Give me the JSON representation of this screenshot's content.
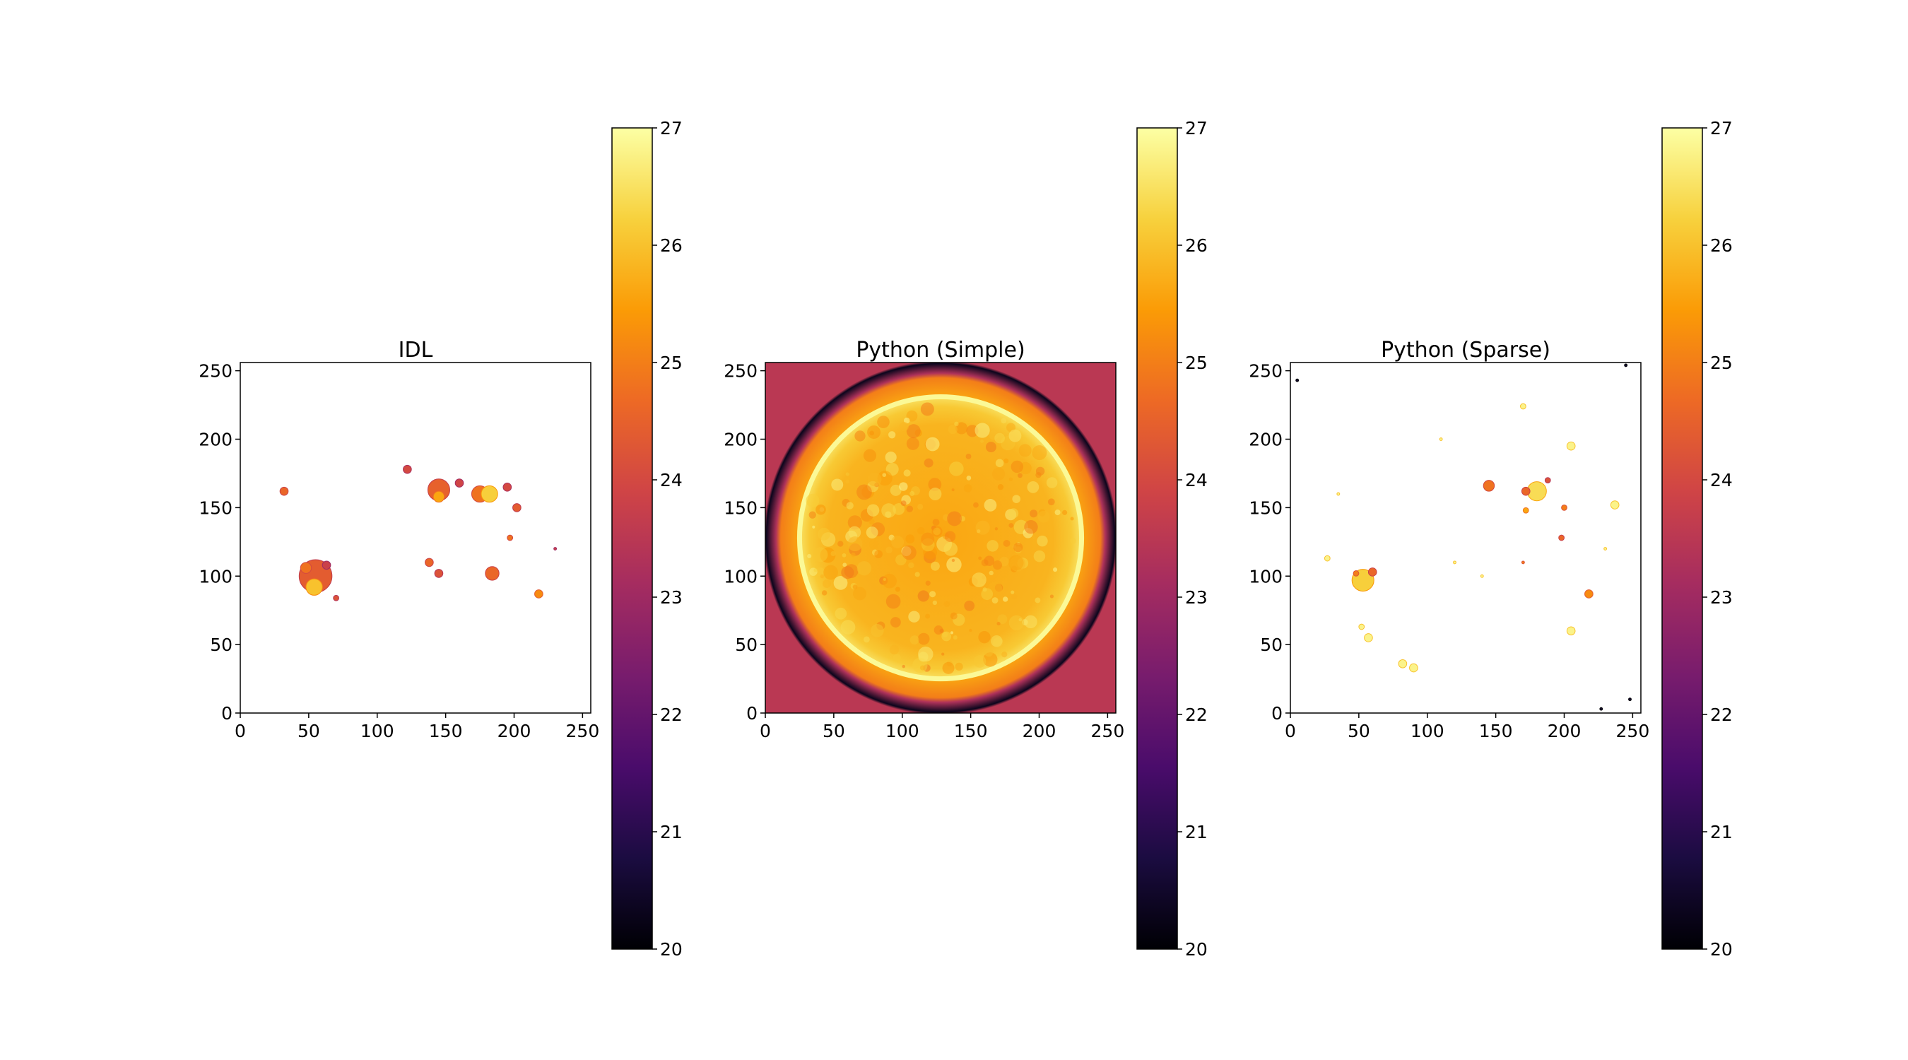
{
  "colormap": {
    "name": "inferno",
    "stops": [
      "#000004",
      "#1b0c41",
      "#4a0c6b",
      "#781c6d",
      "#a52c60",
      "#cf4446",
      "#ed6925",
      "#fb9b06",
      "#f7d13d",
      "#fcffa4"
    ]
  },
  "chart_data": [
    {
      "type": "heatmap",
      "title": "IDL",
      "xlim": [
        0,
        256
      ],
      "ylim": [
        0,
        256
      ],
      "xticks": [
        "0",
        "50",
        "100",
        "150",
        "200",
        "250"
      ],
      "yticks": [
        "0",
        "50",
        "100",
        "150",
        "200",
        "250"
      ],
      "xtick_values": [
        0,
        50,
        100,
        150,
        200,
        250
      ],
      "ytick_values": [
        0,
        50,
        100,
        150,
        200,
        250
      ],
      "style": "sparse",
      "blobs": [
        {
          "x": 32,
          "y": 162,
          "r": 3,
          "v": 24.6
        },
        {
          "x": 55,
          "y": 100,
          "r": 12,
          "v": 24.4
        },
        {
          "x": 54,
          "y": 92,
          "r": 6,
          "v": 26.0
        },
        {
          "x": 48,
          "y": 106,
          "r": 4,
          "v": 24.8
        },
        {
          "x": 63,
          "y": 108,
          "r": 3,
          "v": 23.8
        },
        {
          "x": 70,
          "y": 84,
          "r": 2,
          "v": 24.2
        },
        {
          "x": 122,
          "y": 178,
          "r": 3,
          "v": 24.0
        },
        {
          "x": 145,
          "y": 163,
          "r": 8,
          "v": 24.5
        },
        {
          "x": 145,
          "y": 158,
          "r": 4,
          "v": 25.6
        },
        {
          "x": 160,
          "y": 168,
          "r": 3,
          "v": 23.9
        },
        {
          "x": 175,
          "y": 160,
          "r": 6,
          "v": 24.8
        },
        {
          "x": 182,
          "y": 160,
          "r": 6,
          "v": 26.2
        },
        {
          "x": 195,
          "y": 165,
          "r": 3,
          "v": 24.0
        },
        {
          "x": 202,
          "y": 150,
          "r": 3,
          "v": 24.4
        },
        {
          "x": 138,
          "y": 110,
          "r": 3,
          "v": 24.6
        },
        {
          "x": 145,
          "y": 102,
          "r": 3,
          "v": 24.2
        },
        {
          "x": 184,
          "y": 102,
          "r": 5,
          "v": 24.6
        },
        {
          "x": 197,
          "y": 128,
          "r": 2,
          "v": 24.8
        },
        {
          "x": 218,
          "y": 87,
          "r": 3,
          "v": 25.2
        },
        {
          "x": 230,
          "y": 120,
          "r": 1,
          "v": 23.8
        }
      ]
    },
    {
      "type": "heatmap",
      "title": "Python (Simple)",
      "xlim": [
        0,
        256
      ],
      "ylim": [
        0,
        256
      ],
      "xticks": [
        "0",
        "50",
        "100",
        "150",
        "200",
        "250"
      ],
      "yticks": [
        "0",
        "50",
        "100",
        "150",
        "200",
        "250"
      ],
      "xtick_values": [
        0,
        50,
        100,
        150,
        200,
        250
      ],
      "ytick_values": [
        0,
        50,
        100,
        150,
        200,
        250
      ],
      "style": "disk",
      "disk": {
        "cx": 128,
        "cy": 128,
        "r": 103,
        "v": 25.8
      },
      "limb": {
        "v": 26.5
      },
      "corona": {
        "v_inner": 25.6,
        "v_outer": 22.5
      },
      "background": {
        "v": 23.5
      }
    },
    {
      "type": "heatmap",
      "title": "Python (Sparse)",
      "xlim": [
        0,
        256
      ],
      "ylim": [
        0,
        256
      ],
      "xticks": [
        "0",
        "50",
        "100",
        "150",
        "200",
        "250"
      ],
      "yticks": [
        "0",
        "50",
        "100",
        "150",
        "200",
        "250"
      ],
      "xtick_values": [
        0,
        50,
        100,
        150,
        200,
        250
      ],
      "ytick_values": [
        0,
        50,
        100,
        150,
        200,
        250
      ],
      "style": "sparse",
      "blobs": [
        {
          "x": 5,
          "y": 243,
          "r": 1,
          "v": 20.5
        },
        {
          "x": 245,
          "y": 254,
          "r": 1,
          "v": 20.5
        },
        {
          "x": 227,
          "y": 3,
          "r": 1,
          "v": 20.5
        },
        {
          "x": 248,
          "y": 10,
          "r": 1,
          "v": 20.5
        },
        {
          "x": 53,
          "y": 97,
          "r": 8,
          "v": 26.2
        },
        {
          "x": 60,
          "y": 103,
          "r": 3,
          "v": 24.6
        },
        {
          "x": 48,
          "y": 102,
          "r": 2,
          "v": 25.0
        },
        {
          "x": 145,
          "y": 166,
          "r": 4,
          "v": 24.8
        },
        {
          "x": 180,
          "y": 162,
          "r": 7,
          "v": 26.4
        },
        {
          "x": 172,
          "y": 162,
          "r": 3,
          "v": 24.6
        },
        {
          "x": 188,
          "y": 170,
          "r": 2,
          "v": 24.2
        },
        {
          "x": 172,
          "y": 148,
          "r": 2,
          "v": 25.6
        },
        {
          "x": 200,
          "y": 150,
          "r": 2,
          "v": 25.0
        },
        {
          "x": 198,
          "y": 128,
          "r": 2,
          "v": 24.6
        },
        {
          "x": 218,
          "y": 87,
          "r": 3,
          "v": 25.2
        },
        {
          "x": 170,
          "y": 110,
          "r": 1,
          "v": 25.0
        },
        {
          "x": 52,
          "y": 63,
          "r": 2,
          "v": 26.8
        },
        {
          "x": 57,
          "y": 55,
          "r": 3,
          "v": 26.8
        },
        {
          "x": 82,
          "y": 36,
          "r": 3,
          "v": 26.8
        },
        {
          "x": 90,
          "y": 33,
          "r": 3,
          "v": 26.8
        },
        {
          "x": 205,
          "y": 195,
          "r": 3,
          "v": 26.8
        },
        {
          "x": 237,
          "y": 152,
          "r": 3,
          "v": 26.8
        },
        {
          "x": 170,
          "y": 224,
          "r": 2,
          "v": 26.8
        },
        {
          "x": 205,
          "y": 60,
          "r": 3,
          "v": 26.8
        },
        {
          "x": 27,
          "y": 113,
          "r": 2,
          "v": 26.8
        },
        {
          "x": 35,
          "y": 160,
          "r": 1,
          "v": 26.8
        },
        {
          "x": 120,
          "y": 110,
          "r": 1,
          "v": 26.8
        },
        {
          "x": 140,
          "y": 100,
          "r": 1,
          "v": 26.8
        },
        {
          "x": 110,
          "y": 200,
          "r": 1,
          "v": 26.8
        },
        {
          "x": 230,
          "y": 120,
          "r": 1,
          "v": 26.8
        }
      ]
    }
  ],
  "colorbar": {
    "vmin": 20,
    "vmax": 27,
    "ticks": [
      "20",
      "21",
      "22",
      "23",
      "24",
      "25",
      "26",
      "27"
    ],
    "tick_values": [
      20,
      21,
      22,
      23,
      24,
      25,
      26,
      27
    ]
  }
}
